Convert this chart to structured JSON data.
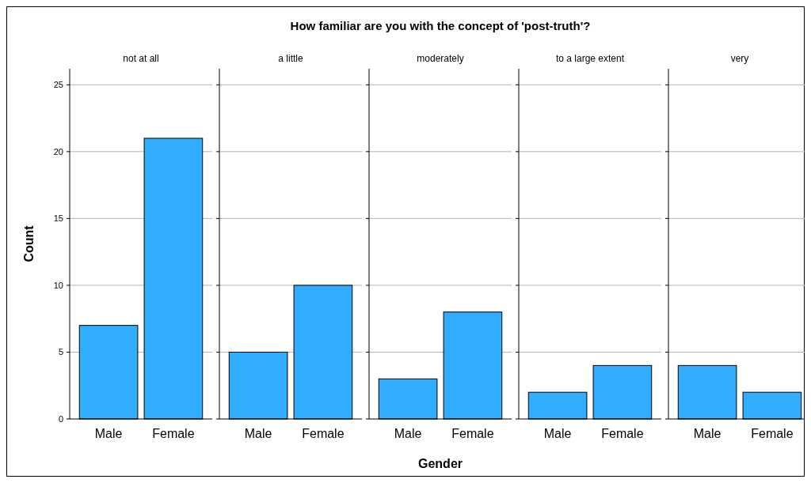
{
  "chart_data": [
    {
      "type": "bar",
      "subtitle": "not at all",
      "ylabel": "Count",
      "categories": [
        "Male",
        "Female"
      ],
      "values": [
        7,
        21
      ],
      "color": "#30adff",
      "ylim": [
        0,
        26.2
      ],
      "yticks": [
        0,
        5,
        10,
        15,
        20,
        25
      ],
      "grid": "y"
    },
    {
      "type": "bar",
      "subtitle": "a little",
      "categories": [
        "Male",
        "Female"
      ],
      "values": [
        5,
        10
      ],
      "color": "#30adff",
      "ylim": [
        0,
        26.2
      ],
      "yticks": [
        0,
        5,
        10,
        15,
        20,
        25
      ],
      "grid": "y",
      "tick_labels": "x"
    },
    {
      "type": "bar",
      "title": "How familiar are you with the concept of 'post-truth'?",
      "subtitle": "moderately",
      "xlabel": "Gender",
      "categories": [
        "Male",
        "Female"
      ],
      "values": [
        3,
        8
      ],
      "color": "#30adff",
      "ylim": [
        0,
        26.2
      ],
      "yticks": [
        0,
        5,
        10,
        15,
        20,
        25
      ],
      "grid": "y",
      "tick_labels": "x"
    },
    {
      "type": "bar",
      "subtitle": "to a large extent",
      "categories": [
        "Male",
        "Female"
      ],
      "values": [
        2,
        4
      ],
      "color": "#30adff",
      "ylim": [
        0,
        26.2
      ],
      "yticks": [
        0,
        5,
        10,
        15,
        20,
        25
      ],
      "grid": "y",
      "tick_labels": "x"
    },
    {
      "type": "bar",
      "subtitle": "very",
      "categories": [
        "Male",
        "Female"
      ],
      "values": [
        4,
        2
      ],
      "color": "#30adff",
      "ylim": [
        0,
        26.2
      ],
      "yticks": [
        0,
        5,
        10,
        15,
        20,
        25
      ],
      "grid": "y",
      "tick_labels": "x"
    }
  ]
}
